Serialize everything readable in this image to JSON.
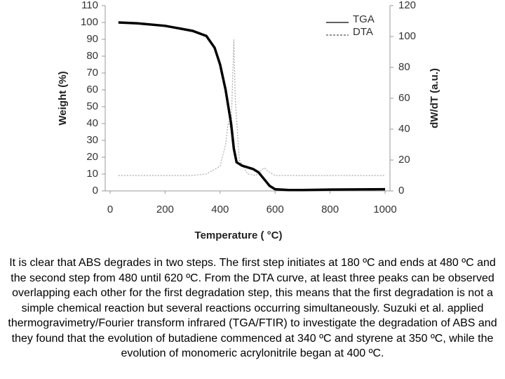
{
  "chart_data": {
    "type": "line",
    "xlabel": "Temperature ( °C)",
    "ylabel": "Weight (%)",
    "y2label": "dW/dT (a.u.)",
    "xlim": [
      0,
      1000
    ],
    "xticks": [
      0,
      200,
      400,
      600,
      800,
      1000
    ],
    "ylim": [
      0,
      110
    ],
    "yticks": [
      0,
      10,
      20,
      30,
      40,
      50,
      60,
      70,
      80,
      90,
      100,
      110
    ],
    "y2lim": [
      0,
      120
    ],
    "y2ticks": [
      0,
      20,
      40,
      60,
      80,
      100,
      120
    ],
    "legend": "upper right",
    "series": [
      {
        "name": "TGA",
        "color": "#000000",
        "x": [
          30,
          100,
          200,
          300,
          350,
          380,
          400,
          420,
          440,
          450,
          460,
          480,
          500,
          520,
          540,
          560,
          580,
          600,
          650,
          700,
          800,
          1000
        ],
        "values": [
          100,
          99.5,
          98,
          95,
          92,
          85,
          75,
          60,
          40,
          25,
          17,
          15,
          14,
          13,
          11,
          7,
          3,
          1,
          0.5,
          0.5,
          0.8,
          1
        ]
      },
      {
        "name": "DTA",
        "color": "#aaaaaa",
        "axis": "y2",
        "x": [
          30,
          300,
          350,
          400,
          420,
          430,
          440,
          450,
          455,
          470,
          500,
          530,
          560,
          580,
          600,
          1000
        ],
        "values": [
          10,
          10,
          11,
          16,
          30,
          45,
          40,
          98,
          60,
          20,
          11,
          10,
          15,
          12,
          10,
          10
        ]
      }
    ]
  },
  "caption": "It is clear that ABS degrades in two steps. The first step initiates at 180 ºC and ends at 480 ºC and the second step from 480 until 620 ºC. From the DTA curve, at least three peaks can be observed overlapping each other for the first degradation step, this means that the first degradation is not a simple chemical reaction but several reactions occurring simultaneously. Suzuki et al. applied thermogravimetry/Fourier transform infrared (TGA/FTIR) to investigate the degradation of ABS and they found that the evolution of butadiene commenced at 340 ºC and styrene at 350 ºC, while the evolution of monomeric acrylonitrile began at 400 ºC."
}
